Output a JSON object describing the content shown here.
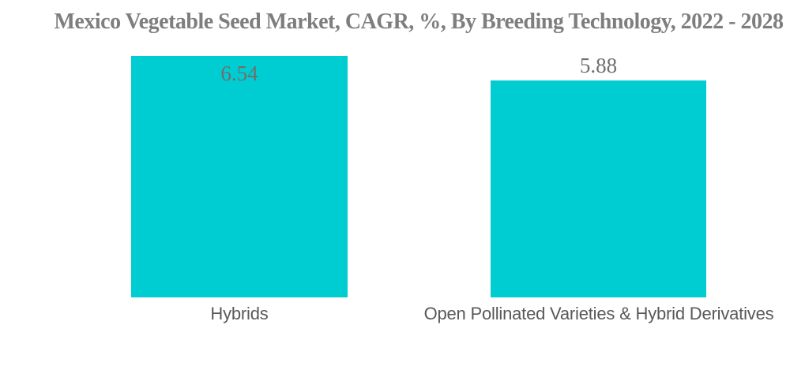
{
  "chart_data": {
    "type": "bar",
    "title": "Mexico Vegetable Seed Market, CAGR, %, By Breeding Technology, 2022 - 2028",
    "categories": [
      "Hybrids",
      "Open Pollinated Varieties & Hybrid Derivatives"
    ],
    "values": [
      6.54,
      5.88
    ],
    "value_labels": [
      "6.54",
      "5.88"
    ],
    "xlabel": "",
    "ylabel": "",
    "ylim": [
      0,
      6.54
    ],
    "grid": false,
    "legend": "none",
    "axes_visible": false,
    "bar_color": "#00CDD1",
    "title_color": "#7E7E7E",
    "value_label_color": "#6F6F6F",
    "category_label_color": "#58595B",
    "background_color": "#FFFFFF"
  }
}
